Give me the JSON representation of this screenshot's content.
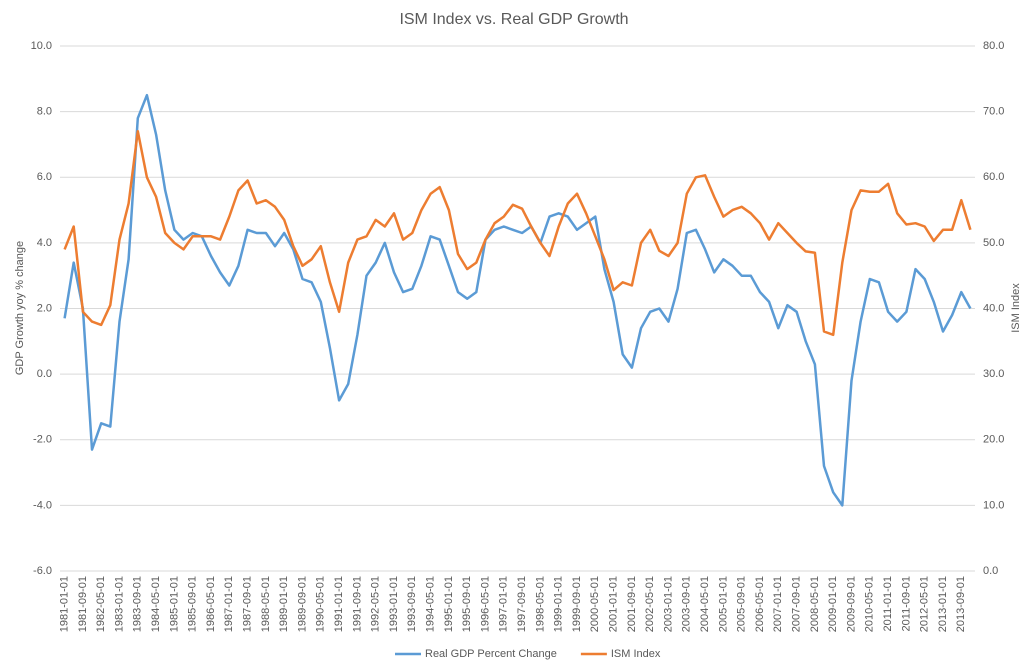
{
  "chart_data": {
    "type": "line",
    "title": "ISM Index vs. Real GDP Growth",
    "ylabel": "GDP Growth yoy % change",
    "y2label": "ISM Index",
    "categories": [
      "1981-01-01",
      null,
      "1981-09-01",
      null,
      "1982-05-01",
      null,
      "1983-01-01",
      null,
      "1983-09-01",
      null,
      "1984-05-01",
      null,
      "1985-01-01",
      null,
      "1985-09-01",
      null,
      "1986-05-01",
      null,
      "1987-01-01",
      null,
      "1987-09-01",
      null,
      "1988-05-01",
      null,
      "1989-01-01",
      null,
      "1989-09-01",
      null,
      "1990-05-01",
      null,
      "1991-01-01",
      null,
      "1991-09-01",
      null,
      "1992-05-01",
      null,
      "1993-01-01",
      null,
      "1993-09-01",
      null,
      "1994-05-01",
      null,
      "1995-01-01",
      null,
      "1995-09-01",
      null,
      "1996-05-01",
      null,
      "1997-01-01",
      null,
      "1997-09-01",
      null,
      "1998-05-01",
      null,
      "1999-01-01",
      null,
      "1999-09-01",
      null,
      "2000-05-01",
      null,
      "2001-01-01",
      null,
      "2001-09-01",
      null,
      "2002-05-01",
      null,
      "2003-01-01",
      null,
      "2003-09-01",
      null,
      "2004-05-01",
      null,
      "2005-01-01",
      null,
      "2005-09-01",
      null,
      "2006-05-01",
      null,
      "2007-01-01",
      null,
      "2007-09-01",
      null,
      "2008-05-01",
      null,
      "2009-01-01",
      null,
      "2009-09-01",
      null,
      "2010-05-01",
      null,
      "2011-01-01",
      null,
      "2011-09-01",
      null,
      "2012-05-01",
      null,
      "2013-01-01",
      null,
      "2013-09-01",
      null
    ],
    "series": [
      {
        "name": "Real GDP  Percent Change",
        "color": "#5b9bd5",
        "axis": "y",
        "values": [
          1.7,
          3.4,
          2.0,
          -2.3,
          -1.5,
          -1.6,
          1.6,
          3.5,
          7.8,
          8.5,
          7.3,
          5.6,
          4.4,
          4.1,
          4.3,
          4.2,
          3.6,
          3.1,
          2.7,
          3.3,
          4.4,
          4.3,
          4.3,
          3.9,
          4.3,
          3.8,
          2.9,
          2.8,
          2.2,
          0.8,
          -0.8,
          -0.3,
          1.2,
          3.0,
          3.4,
          4.0,
          3.1,
          2.5,
          2.6,
          3.3,
          4.2,
          4.1,
          3.3,
          2.5,
          2.3,
          2.5,
          4.1,
          4.4,
          4.5,
          4.4,
          4.3,
          4.5,
          4.0,
          4.8,
          4.9,
          4.8,
          4.4,
          4.6,
          4.8,
          3.2,
          2.2,
          0.6,
          0.2,
          1.4,
          1.9,
          2.0,
          1.6,
          2.6,
          4.3,
          4.4,
          3.8,
          3.1,
          3.5,
          3.3,
          3.0,
          3.0,
          2.5,
          2.2,
          1.4,
          2.1,
          1.9,
          1.0,
          0.3,
          -2.8,
          -3.6,
          -4.0,
          -0.2,
          1.6,
          2.9,
          2.8,
          1.9,
          1.6,
          1.9,
          3.2,
          2.9,
          2.2,
          1.3,
          1.8,
          2.5,
          2.0
        ]
      },
      {
        "name": "ISM Index",
        "color": "#ed7d31",
        "axis": "y2",
        "values": [
          49,
          52.5,
          39.5,
          38,
          37.5,
          40.5,
          50.5,
          56,
          67,
          60,
          57,
          51.5,
          50,
          49,
          51,
          51,
          51,
          50.5,
          54,
          58,
          59.5,
          56,
          56.5,
          55.5,
          53.5,
          49.5,
          46.5,
          47.5,
          49.5,
          44,
          39.5,
          47,
          50.5,
          51,
          53.5,
          52.5,
          54.5,
          50.5,
          51.5,
          55,
          57.5,
          58.5,
          55,
          48.3,
          46,
          47,
          50.5,
          53,
          54,
          55.8,
          55.2,
          52.5,
          50,
          48,
          52.5,
          56,
          57.5,
          54.5,
          51,
          47.5,
          42.8,
          44,
          43.5,
          50,
          52,
          48.8,
          48,
          50,
          57.5,
          60,
          60.3,
          57,
          54,
          55,
          55.5,
          54.5,
          53,
          50.5,
          53,
          51.5,
          50,
          48.7,
          48.5,
          36.5,
          36,
          47,
          55,
          58,
          57.8,
          57.8,
          59,
          54.5,
          52.8,
          53,
          52.5,
          50.3,
          52,
          52,
          56.5,
          52
        ]
      }
    ],
    "ylim": [
      -6,
      10
    ],
    "yticks": [
      {
        "value": -6,
        "label": "-6.0"
      },
      {
        "value": -4,
        "label": "-4.0"
      },
      {
        "value": -2,
        "label": "-2.0"
      },
      {
        "value": 0,
        "label": "0.0"
      },
      {
        "value": 2,
        "label": "2.0"
      },
      {
        "value": 4,
        "label": "4.0"
      },
      {
        "value": 6,
        "label": "6.0"
      },
      {
        "value": 8,
        "label": "8.0"
      },
      {
        "value": 10,
        "label": "10.0"
      }
    ],
    "y2lim": [
      0,
      80
    ],
    "y2ticks": [
      {
        "value": 0,
        "label": "0.0"
      },
      {
        "value": 10,
        "label": "10.0"
      },
      {
        "value": 20,
        "label": "20.0"
      },
      {
        "value": 30,
        "label": "30.0"
      },
      {
        "value": 40,
        "label": "40.0"
      },
      {
        "value": 50,
        "label": "50.0"
      },
      {
        "value": 60,
        "label": "60.0"
      },
      {
        "value": 70,
        "label": "70.0"
      },
      {
        "value": 80,
        "label": "80.0"
      }
    ],
    "grid": true,
    "legend": "bottom"
  }
}
